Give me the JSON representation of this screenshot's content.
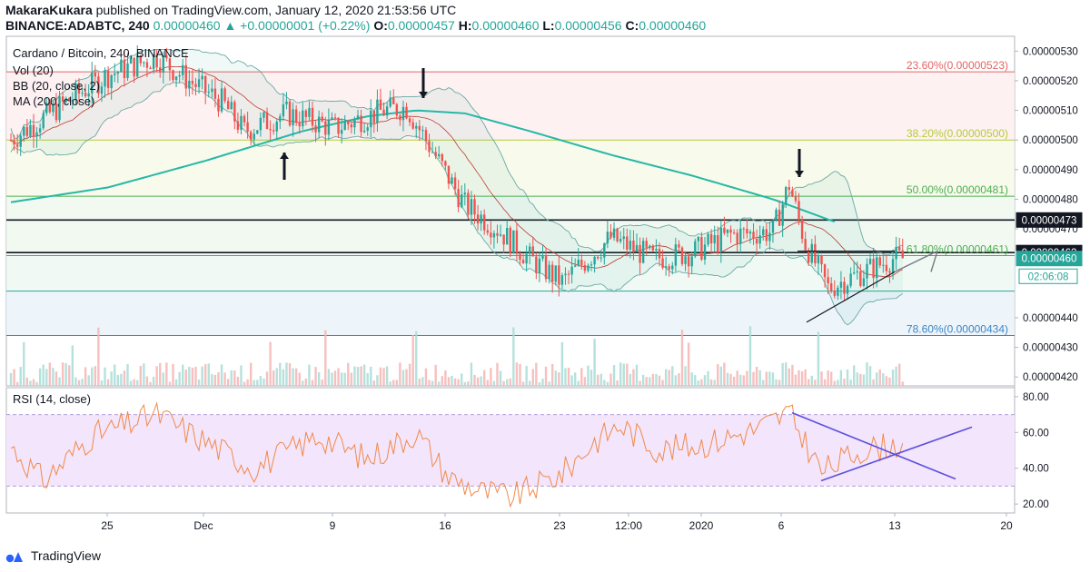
{
  "header": {
    "author": "MakaraKukara",
    "published": "published on TradingView.com, January 12, 2020 21:53:56 UTC",
    "symbol": "BINANCE:ADABTC, 240",
    "price": "0.00000460",
    "change": "▲ +0.00000001 (+0.22%)",
    "o_label": "O:",
    "o": "0.00000457",
    "h_label": "H:",
    "h": "0.00000460",
    "l_label": "L:",
    "l": "0.00000456",
    "c_label": "C:",
    "c": "0.00000460"
  },
  "legend": {
    "title": "Cardano / Bitcoin, 240, BINANCE",
    "vol": "Vol (20)",
    "bb": "BB (20, close, 2)",
    "ma": "MA (200, close)"
  },
  "rsi": {
    "title": "RSI (14, close)"
  },
  "footer": {
    "brand": "TradingView"
  },
  "colors": {
    "up": "#26a69a",
    "down": "#ef5350",
    "ma": "#26b8a5",
    "bb": "#6aa9a4",
    "basis": "#c0392b",
    "rsi": "#f08a4b",
    "trend": "#5b4fe0"
  },
  "chart_data": {
    "type": "candlestick",
    "price_axis": {
      "ticks": [
        "0.00000530",
        "0.00000520",
        "0.00000510",
        "0.00000500",
        "0.00000490",
        "0.00000480",
        "0.00000470",
        "0.00000440",
        "0.00000430",
        "0.00000420"
      ],
      "ylim": [
        4.17e-06,
        5.35e-06
      ]
    },
    "x_axis": {
      "ticks": [
        "25",
        "Dec",
        "9",
        "16",
        "23",
        "12:00",
        "2020",
        "6",
        "13",
        "20"
      ]
    },
    "price_tags": [
      {
        "label": "0.00000473",
        "value": 4.73e-06,
        "style": "dark"
      },
      {
        "label": "0.00000462",
        "value": 4.62e-06,
        "style": "dark"
      },
      {
        "label": "0.00000460",
        "value": 4.6e-06,
        "style": "green"
      },
      {
        "label": "02:06:08",
        "value": 4.54e-06,
        "style": "countdown"
      }
    ],
    "fib_levels": [
      {
        "label": "23.60%(0.00000523)",
        "value": 5.23e-06,
        "color": "#e06666"
      },
      {
        "label": "38.20%(0.00000500)",
        "value": 5e-06,
        "color": "#b5cc3a"
      },
      {
        "label": "50.00%(0.00000481)",
        "value": 4.81e-06,
        "color": "#4caf50"
      },
      {
        "label": "61.80%(0.00000461)",
        "value": 4.61e-06,
        "color": "#4caf50"
      },
      {
        "label": "",
        "value": 4.49e-06,
        "color": "#26a69a"
      },
      {
        "label": "78.60%(0.00000434)",
        "value": 4.34e-06,
        "color": "#3d85c6"
      }
    ],
    "horizontal_lines": [
      {
        "value": 4.73e-06,
        "color": "#131722"
      },
      {
        "value": 4.62e-06,
        "color": "#131722"
      }
    ],
    "key_prices": [
      {
        "x": 0,
        "y": 5e-06
      },
      {
        "x": 20,
        "y": 5.15e-06
      },
      {
        "x": 30,
        "y": 5.22e-06
      },
      {
        "x": 45,
        "y": 5.28e-06
      },
      {
        "x": 55,
        "y": 5.2e-06
      },
      {
        "x": 65,
        "y": 5.13e-06
      },
      {
        "x": 72,
        "y": 5.03e-06
      },
      {
        "x": 85,
        "y": 5.09e-06
      },
      {
        "x": 100,
        "y": 5.04e-06
      },
      {
        "x": 115,
        "y": 5.1e-06
      },
      {
        "x": 122,
        "y": 5.11e-06
      },
      {
        "x": 128,
        "y": 5e-06
      },
      {
        "x": 140,
        "y": 4.78e-06
      },
      {
        "x": 150,
        "y": 4.7e-06
      },
      {
        "x": 160,
        "y": 4.6e-06
      },
      {
        "x": 170,
        "y": 4.52e-06
      },
      {
        "x": 185,
        "y": 4.67e-06
      },
      {
        "x": 198,
        "y": 4.6e-06
      },
      {
        "x": 210,
        "y": 4.62e-06
      },
      {
        "x": 222,
        "y": 4.68e-06
      },
      {
        "x": 235,
        "y": 4.69e-06
      },
      {
        "x": 240,
        "y": 4.85e-06
      },
      {
        "x": 245,
        "y": 4.65e-06
      },
      {
        "x": 252,
        "y": 4.5e-06
      },
      {
        "x": 262,
        "y": 4.55e-06
      },
      {
        "x": 272,
        "y": 4.6e-06
      }
    ],
    "ma200": [
      {
        "x": 0,
        "y": 4.79e-06
      },
      {
        "x": 30,
        "y": 4.84e-06
      },
      {
        "x": 60,
        "y": 4.93e-06
      },
      {
        "x": 90,
        "y": 5.03e-06
      },
      {
        "x": 110,
        "y": 5.08e-06
      },
      {
        "x": 125,
        "y": 5.1e-06
      },
      {
        "x": 140,
        "y": 5.09e-06
      },
      {
        "x": 160,
        "y": 5.03e-06
      },
      {
        "x": 185,
        "y": 4.95e-06
      },
      {
        "x": 210,
        "y": 4.88e-06
      },
      {
        "x": 235,
        "y": 4.8e-06
      },
      {
        "x": 255,
        "y": 4.72e-06
      }
    ],
    "rsi_axis": {
      "ticks": [
        "80.00",
        "60.00",
        "40.00",
        "20.00"
      ],
      "ylim": [
        15,
        85
      ],
      "bands": [
        30,
        70
      ]
    },
    "rsi_key": [
      {
        "x": 0,
        "y": 52
      },
      {
        "x": 10,
        "y": 33
      },
      {
        "x": 25,
        "y": 58
      },
      {
        "x": 45,
        "y": 70
      },
      {
        "x": 60,
        "y": 55
      },
      {
        "x": 75,
        "y": 40
      },
      {
        "x": 95,
        "y": 58
      },
      {
        "x": 110,
        "y": 45
      },
      {
        "x": 125,
        "y": 60
      },
      {
        "x": 135,
        "y": 35
      },
      {
        "x": 145,
        "y": 27
      },
      {
        "x": 155,
        "y": 24
      },
      {
        "x": 170,
        "y": 37
      },
      {
        "x": 180,
        "y": 55
      },
      {
        "x": 188,
        "y": 64
      },
      {
        "x": 200,
        "y": 50
      },
      {
        "x": 215,
        "y": 54
      },
      {
        "x": 230,
        "y": 62
      },
      {
        "x": 240,
        "y": 71
      },
      {
        "x": 250,
        "y": 38
      },
      {
        "x": 262,
        "y": 50
      },
      {
        "x": 272,
        "y": 53
      }
    ]
  }
}
